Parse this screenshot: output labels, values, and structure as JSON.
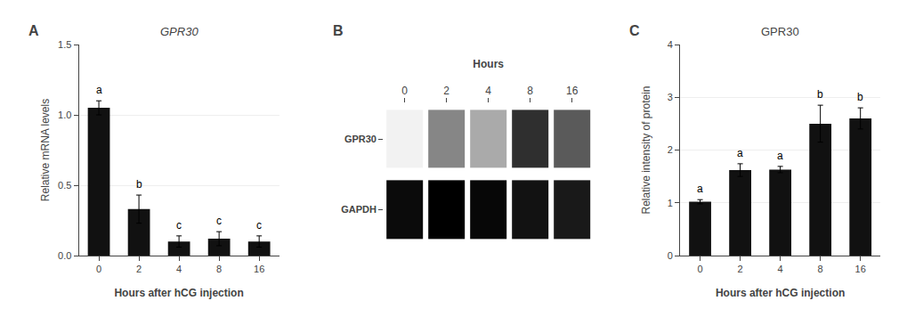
{
  "chart_data": [
    {
      "type": "bar",
      "panel_label": "A",
      "title": "GPR30",
      "xlabel": "Hours after hCG injection",
      "ylabel": "Relative mRNA levels",
      "categories": [
        "0",
        "2",
        "4",
        "8",
        "16"
      ],
      "values": [
        1.05,
        0.33,
        0.1,
        0.12,
        0.1
      ],
      "errors": [
        0.05,
        0.1,
        0.04,
        0.05,
        0.04
      ],
      "letters": [
        "a",
        "b",
        "c",
        "c",
        "c"
      ],
      "ylim": [
        0,
        1.5
      ],
      "yticks": [
        {
          "value": 0.0,
          "label": "0.0"
        },
        {
          "value": 0.5,
          "label": "0.5"
        },
        {
          "value": 1.0,
          "label": "1.0"
        },
        {
          "value": 1.5,
          "label": "1.5"
        }
      ],
      "color": "#111111"
    },
    {
      "type": "heatmap",
      "panel_label": "B",
      "xlabel": "Hours",
      "categories": [
        "0",
        "2",
        "4",
        "8",
        "16"
      ],
      "rows": [
        "GPR30",
        "GAPDH"
      ],
      "cells": [
        [
          0.28,
          0.58,
          0.48,
          0.82,
          0.7
        ],
        [
          0.92,
          0.95,
          0.93,
          0.9,
          0.88
        ]
      ]
    },
    {
      "type": "bar",
      "panel_label": "C",
      "title": "GPR30",
      "xlabel": "Hours after hCG injection",
      "ylabel": "Relative intensity of protein",
      "categories": [
        "0",
        "2",
        "4",
        "8",
        "16"
      ],
      "values": [
        1.02,
        1.62,
        1.63,
        2.5,
        2.6
      ],
      "errors": [
        0.04,
        0.12,
        0.06,
        0.35,
        0.2
      ],
      "letters": [
        "a",
        "a",
        "a",
        "b",
        "b"
      ],
      "ylim": [
        0,
        4
      ],
      "yticks": [
        0,
        1,
        2,
        3,
        4
      ],
      "color": "#111111"
    }
  ]
}
